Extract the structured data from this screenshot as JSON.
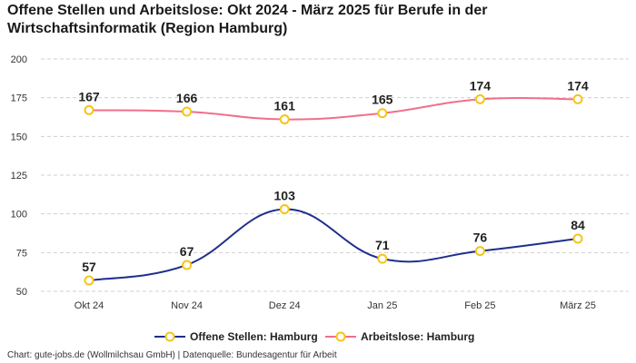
{
  "chart_data": {
    "type": "line",
    "title": "Offene Stellen und Arbeitslose: Okt 2024 - März 2025 für Berufe in der Wirtschaftsinformatik (Region Hamburg)",
    "categories": [
      "Okt 24",
      "Nov 24",
      "Dez 24",
      "Jan 25",
      "Feb 25",
      "März 25"
    ],
    "ylim": [
      50,
      200
    ],
    "yticks": [
      50,
      75,
      100,
      125,
      150,
      175,
      200
    ],
    "grid": true,
    "legend_position": "bottom-center",
    "series": [
      {
        "name": "Offene Stellen: Hamburg",
        "color": "#1f2f8c",
        "values": [
          57,
          67,
          103,
          71,
          76,
          84
        ]
      },
      {
        "name": "Arbeitslose: Hamburg",
        "color": "#f0708a",
        "values": [
          167,
          166,
          161,
          165,
          174,
          174
        ]
      }
    ],
    "marker_color": "#f5c518"
  },
  "source": "Chart: gute-jobs.de (Wollmilchsau GmbH) | Datenquelle: Bundesagentur für Arbeit"
}
